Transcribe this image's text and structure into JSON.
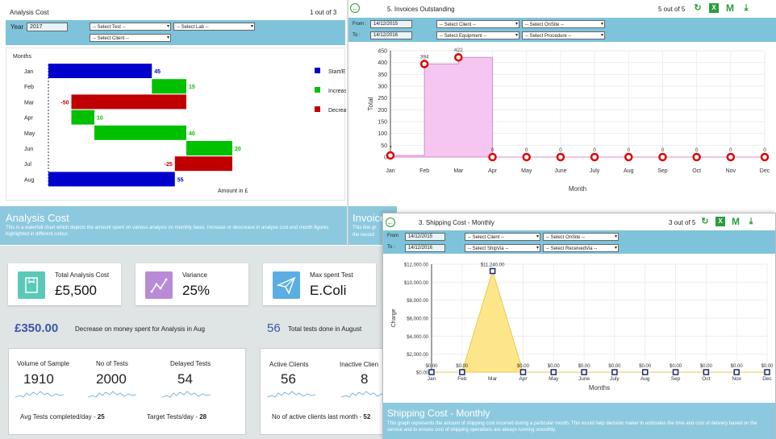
{
  "analysis_panel": {
    "title": "Analysis Cost",
    "pager": "1 out of 3",
    "year_label": "Year",
    "year_value": "2017",
    "select_test": "-- Select Test --",
    "select_lab": "-- Select Lab --",
    "select_client": "-- Select Client --",
    "chart_header": "Months",
    "x_label": "Amount in £",
    "legend": [
      "Start/E",
      "Increas",
      "Decrea"
    ],
    "colors": {
      "start": "#0000cc",
      "increase": "#00c000",
      "decrease": "#c00000"
    }
  },
  "chart_data": [
    {
      "type": "bar",
      "subtype": "waterfall",
      "categories": [
        "Jan",
        "Feb",
        "Mar",
        "Apr",
        "May",
        "Jun",
        "Jul",
        "Aug"
      ],
      "values": [
        45,
        15,
        -50,
        10,
        40,
        20,
        -25,
        55
      ],
      "labels": [
        "45",
        "15",
        "-50",
        "10",
        "40",
        "20",
        "-25",
        "55"
      ],
      "kinds": [
        "start",
        "increase",
        "decrease",
        "increase",
        "increase",
        "increase",
        "decrease",
        "start"
      ],
      "xlabel": "Amount in £",
      "ylabel": "Months",
      "legend": [
        "Start/E",
        "Increas",
        "Decrea"
      ]
    },
    {
      "type": "area",
      "categories": [
        "Jan",
        "Feb",
        "Mar",
        "Apr",
        "May",
        "June",
        "July",
        "Aug",
        "Sep",
        "Oct",
        "Nov",
        "Dec"
      ],
      "values": [
        7,
        394,
        422,
        0,
        0,
        0,
        0,
        0,
        0,
        0,
        0,
        0
      ],
      "labels": [
        "7",
        "394",
        "422",
        "0",
        "0",
        "0",
        "0",
        "0",
        "0",
        "0",
        "0",
        "0"
      ],
      "xlabel": "Month",
      "ylabel": "Total",
      "ylim": [
        0,
        450
      ],
      "yticks": [
        "0",
        "50",
        "100",
        "150",
        "200",
        "250",
        "300",
        "350",
        "400",
        "450"
      ],
      "grid": true,
      "style": "step"
    },
    {
      "type": "area",
      "categories": [
        "Jan",
        "Feb",
        "Mar",
        "Apr",
        "May",
        "June",
        "July",
        "Aug",
        "Sep",
        "Oct",
        "Nov",
        "Dec"
      ],
      "values": [
        0,
        0,
        11240,
        0,
        0,
        0,
        0,
        0,
        0,
        0,
        0,
        0
      ],
      "labels": [
        "$0.00",
        "$0.00",
        "$11,240.00",
        "$0.00",
        "$0.00",
        "$0.00",
        "$0.00",
        "$0.00",
        "$0.00",
        "$0.00",
        "$0.00",
        "$0.00"
      ],
      "xlabel": "Months",
      "ylabel": "Charge",
      "ylim": [
        0,
        12000
      ],
      "yticks": [
        "$0.00",
        "$2,000.00",
        "$4,000.00",
        "$6,000.00",
        "$8,000.00",
        "$10,000.00",
        "$12,000.00"
      ],
      "grid": true
    }
  ],
  "analysis_desc": {
    "title": "Analysis Cost",
    "text": "This is a waterfall chart which depicts the amount spent on various analysis on monthly basis. Increase or descrease in analyse cost end month figures highlighted in different colour."
  },
  "invoices_panel": {
    "title": "5. Invoices Outstanding",
    "pager": "5 out of 5",
    "from_label": "From :",
    "to_label": "To :",
    "from_value": "14/12/2015",
    "to_value": "14/12/2016",
    "select_client": "-- Select Client --",
    "select_onsite": "-- Select OnSite --",
    "select_equipment": "-- Select Equipment --",
    "select_procedure": "-- Select Procedure --",
    "desc_title": "Invoice",
    "desc_text_1": "This line gr",
    "desc_text_2": "the record"
  },
  "shipping_panel": {
    "title": "3. Shipping Cost - Monthly",
    "pager": "3 out of 5",
    "from_label": "From",
    "to_label": "To :",
    "from_value": "14/12/2015",
    "to_value": "14/12/2016",
    "select_client": "-- Select Client --",
    "select_onsite": "-- Select OnSite --",
    "select_shipvia": "-- Select ShipVia --",
    "select_receivedvia": "-- Select ReceivedVia --",
    "desc_title": "Shipping Cost - Monthly",
    "desc_text": "This graph represents the amount of shipping cost incurred during a particular month. This would help decision maker to estimates the time and cost of delivery based on the service and to ensure cost of shipping operations are always running smoothly."
  },
  "kpis": [
    {
      "title": "Total Analysis Cost",
      "value": "£5,500",
      "color": "#5bc9b8",
      "icon": "book-icon"
    },
    {
      "title": "Variance",
      "value": "25%",
      "color": "#b98ad6",
      "icon": "trend-icon"
    },
    {
      "title": "Max spent Test",
      "value": "E.Coli",
      "color": "#5aaee3",
      "icon": "send-icon"
    }
  ],
  "summary": {
    "decrease_value": "£350.00",
    "decrease_text": "Decrease on money spent for Analysis in Aug",
    "tests_value": "56",
    "tests_text": "Total tests done in August"
  },
  "stats_left": {
    "items": [
      {
        "label": "Volume of Sample",
        "value": "1910"
      },
      {
        "label": "No of Tests",
        "value": "2000"
      },
      {
        "label": "Delayed Tests",
        "value": "54"
      }
    ],
    "avg_label": "Avg Tests completed/day - ",
    "avg_value": "25",
    "target_label": "Target Tests/day - ",
    "target_value": "28"
  },
  "stats_right": {
    "items": [
      {
        "label": "Active Clients",
        "value": "56"
      },
      {
        "label": "Inactive Clien",
        "value": "8"
      }
    ],
    "footer_label": "No of active clients last month - ",
    "footer_value": "52"
  },
  "theme": {
    "accent": "#7fc3da",
    "green": "#2a9d3a",
    "blue_text": "#3a57a8",
    "pink_fill": "#f5c6ef",
    "pink_stroke": "#d88ad0",
    "yellow_fill": "#fde68a",
    "yellow_stroke": "#e9c84a"
  }
}
